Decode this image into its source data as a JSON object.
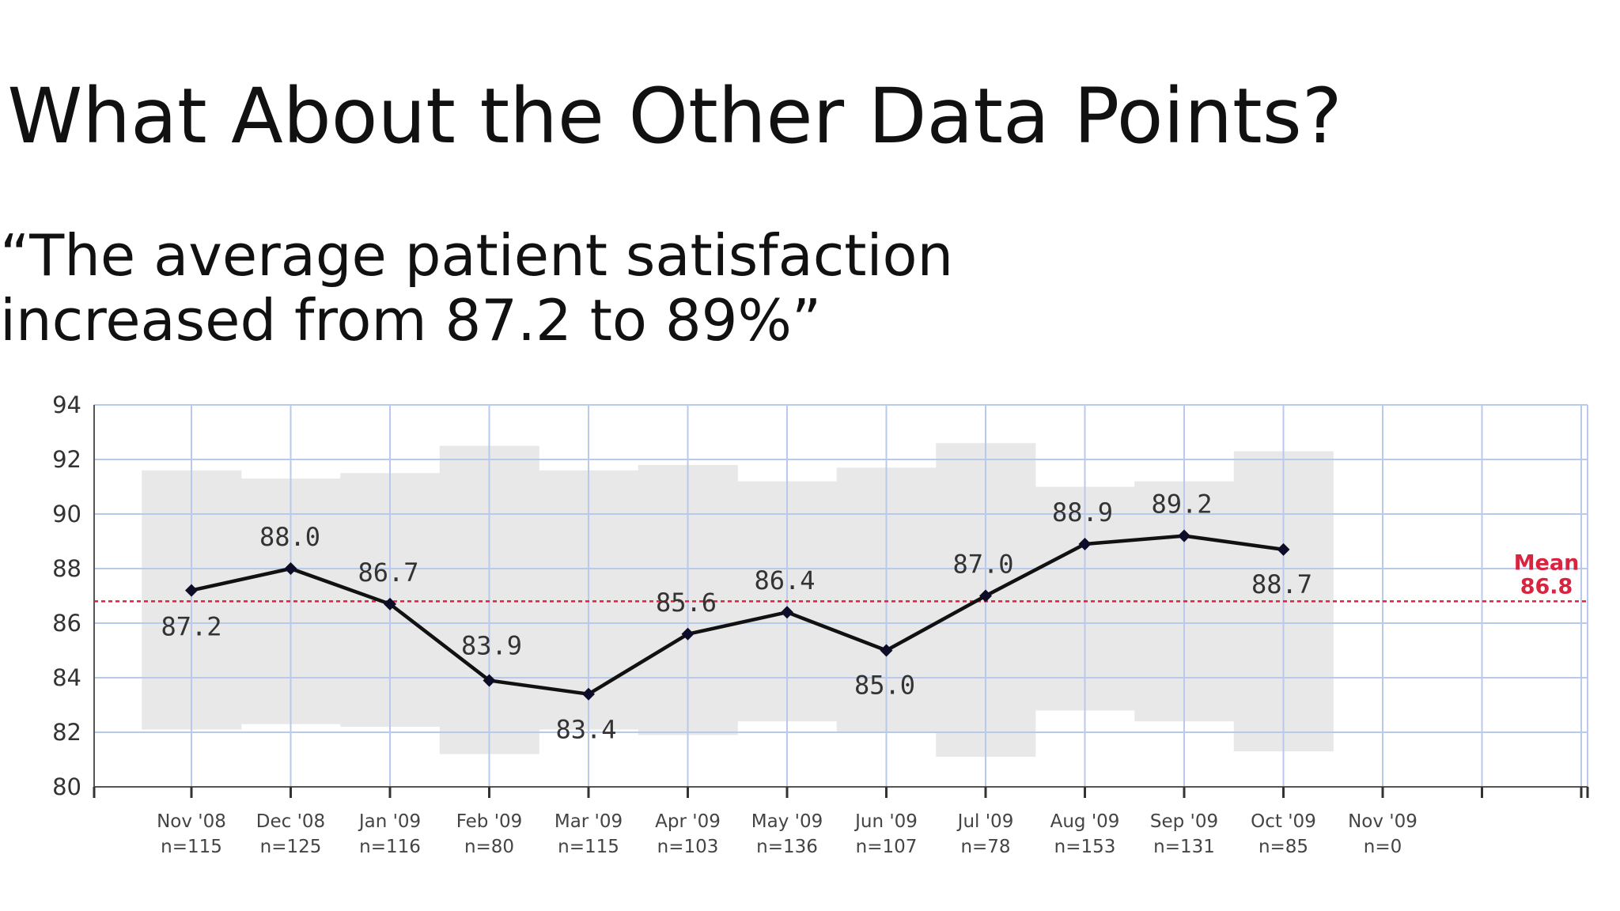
{
  "slide": {
    "title": "What About the Other Data Points?",
    "quote_line1": "“The average patient satisfaction",
    "quote_line2": "increased from 87.2 to 89%”"
  },
  "colors": {
    "line": "#111111",
    "grid": "#b8c9ec",
    "band": "#e8e8e8",
    "mean": "#d8243f"
  },
  "chart_data": {
    "type": "line",
    "title": "",
    "xlabel": "",
    "ylabel": "",
    "ylim": [
      80,
      94
    ],
    "yticks": [
      80,
      82,
      84,
      86,
      88,
      90,
      92,
      94
    ],
    "grid": true,
    "categories": [
      "Nov '08",
      "Dec '08",
      "Jan '09",
      "Feb '09",
      "Mar '09",
      "Apr '09",
      "May '09",
      "Jun '09",
      "Jul '09",
      "Aug '09",
      "Sep '09",
      "Oct '09",
      "Nov '09"
    ],
    "sample_sizes": [
      "n=115",
      "n=125",
      "n=116",
      "n=80",
      "n=115",
      "n=103",
      "n=136",
      "n=107",
      "n=78",
      "n=153",
      "n=131",
      "n=85",
      "n=0"
    ],
    "series": [
      {
        "values": [
          87.2,
          88.0,
          86.7,
          83.9,
          83.4,
          85.6,
          86.4,
          85.0,
          87.0,
          88.9,
          89.2,
          88.7,
          null
        ],
        "data_labels": [
          "87.2",
          "88.0",
          "86.7",
          "83.9",
          "83.4",
          "85.6",
          "86.4",
          "85.0",
          "87.0",
          "88.9",
          "89.2",
          "88.7"
        ]
      }
    ],
    "control_limits": {
      "upper": [
        91.6,
        91.3,
        91.5,
        92.5,
        91.6,
        91.8,
        91.2,
        91.7,
        92.6,
        91.0,
        91.2,
        92.3
      ],
      "lower": [
        82.1,
        82.3,
        82.2,
        81.2,
        82.1,
        81.9,
        82.4,
        82.0,
        81.1,
        82.8,
        82.4,
        81.3
      ]
    },
    "mean": {
      "value": 86.8,
      "label": "Mean",
      "value_label": "86.8"
    }
  }
}
